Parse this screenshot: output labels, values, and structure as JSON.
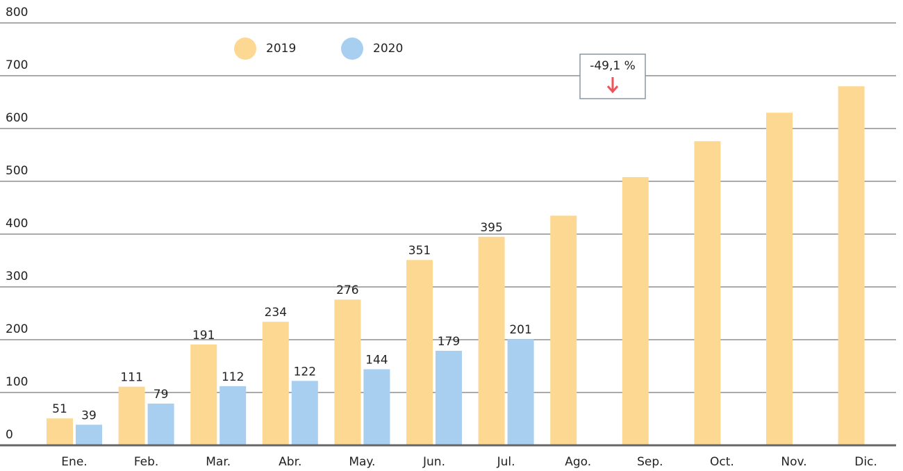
{
  "chart_data": {
    "type": "bar",
    "categories": [
      "Ene.",
      "Feb.",
      "Mar.",
      "Abr.",
      "May.",
      "Jun.",
      "Jul.",
      "Ago.",
      "Sep.",
      "Oct.",
      "Nov.",
      "Dic."
    ],
    "series": [
      {
        "name": "2019",
        "color": "#fdd893",
        "values": [
          51,
          111,
          191,
          234,
          276,
          351,
          395,
          435,
          508,
          576,
          630,
          680
        ],
        "value_labels": [
          "51",
          "111",
          "191",
          "234",
          "276",
          "351",
          "395",
          null,
          null,
          null,
          null,
          null
        ]
      },
      {
        "name": "2020",
        "color": "#a8cff0",
        "values": [
          39,
          79,
          112,
          122,
          144,
          179,
          201,
          null,
          null,
          null,
          null,
          null
        ],
        "value_labels": [
          "39",
          "79",
          "112",
          "122",
          "144",
          "179",
          "201",
          null,
          null,
          null,
          null,
          null
        ]
      }
    ],
    "ylim": [
      0,
      800
    ],
    "yticks": [
      0,
      100,
      200,
      300,
      400,
      500,
      600,
      700,
      800
    ],
    "grid": true,
    "annotation": "-49,1 %"
  }
}
